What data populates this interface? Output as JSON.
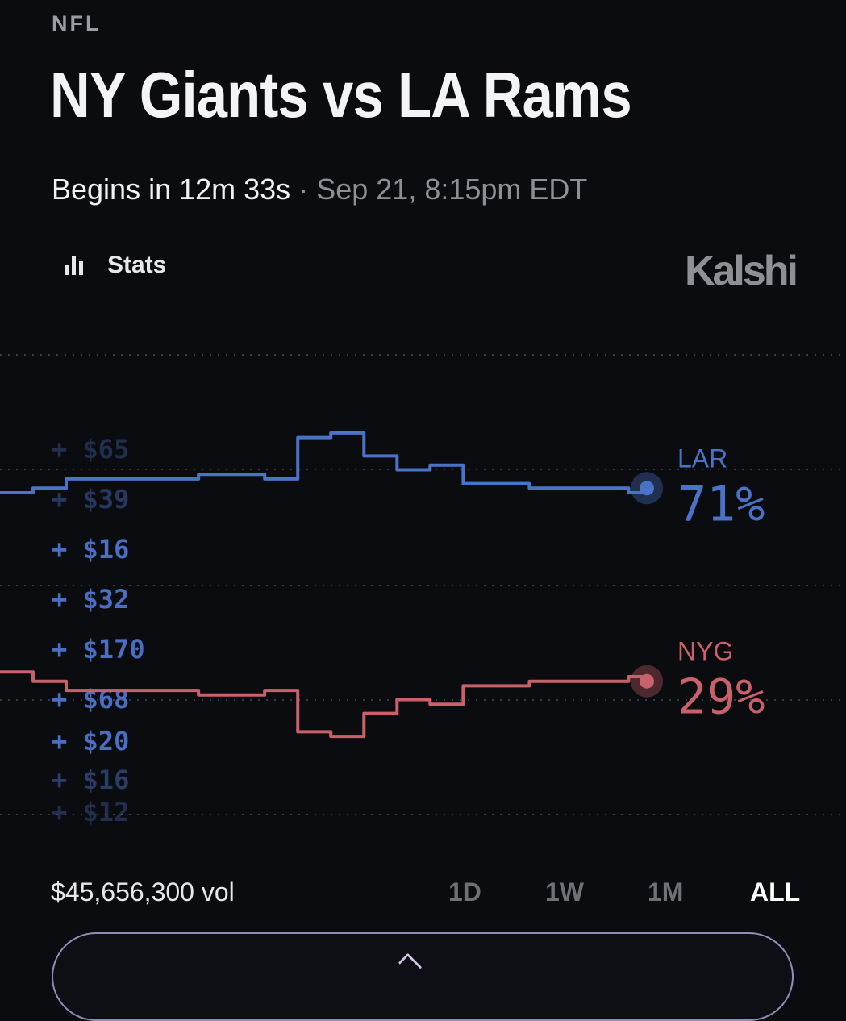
{
  "header": {
    "league": "NFL",
    "title": "NY Giants vs LA Rams",
    "begins": "Begins in 12m 33s",
    "separator": "·",
    "date": "Sep 21, 8:15pm EDT"
  },
  "stats_button": {
    "label": "Stats",
    "icon": "bar-chart-icon"
  },
  "brand": {
    "name": "Kalshi"
  },
  "colors": {
    "lar": "#4a73c8",
    "nyg": "#c9606a",
    "background": "#0b0c10"
  },
  "chart_data": {
    "type": "line",
    "title": "",
    "xlabel": "",
    "ylabel": "",
    "x": [
      0,
      4,
      8,
      12,
      16,
      20,
      24,
      28,
      32,
      36,
      40,
      44,
      48,
      52,
      56,
      60,
      64,
      68,
      72,
      76,
      78
    ],
    "series": [
      {
        "name": "LAR",
        "label": "71%",
        "values": [
          70,
          71,
          73,
          73,
          73,
          73,
          74,
          74,
          73,
          82,
          83,
          78,
          75,
          76,
          72,
          72,
          71,
          71,
          71,
          70,
          71
        ]
      },
      {
        "name": "NYG",
        "label": "29%",
        "values": [
          31,
          29,
          27,
          27,
          27,
          27,
          26,
          26,
          27,
          18,
          17,
          22,
          25,
          24,
          28,
          28,
          29,
          29,
          29,
          30,
          29
        ]
      }
    ],
    "trade_labels": [
      "+ $65",
      "+ $39",
      "+ $16",
      "+ $32",
      "+ $170",
      "+ $68",
      "+ $20",
      "+ $16",
      "+ $12"
    ],
    "grid": true,
    "legend": "right"
  },
  "footer": {
    "volume": "$45,656,300 vol",
    "ranges": [
      "1D",
      "1W",
      "1M",
      "ALL"
    ],
    "active_range": "ALL"
  }
}
